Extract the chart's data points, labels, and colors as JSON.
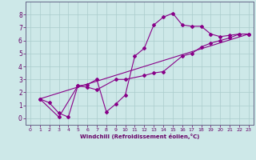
{
  "xlabel": "Windchill (Refroidissement éolien,°C)",
  "bg_color": "#cde8e8",
  "line_color": "#880088",
  "grid_color": "#aacccc",
  "axis_color": "#666688",
  "text_color": "#660066",
  "xlim": [
    -0.5,
    23.5
  ],
  "ylim": [
    -0.5,
    9.0
  ],
  "x_ticks": [
    0,
    1,
    2,
    3,
    4,
    5,
    6,
    7,
    8,
    9,
    10,
    11,
    12,
    13,
    14,
    15,
    16,
    17,
    18,
    19,
    20,
    21,
    22,
    23
  ],
  "y_ticks": [
    0,
    1,
    2,
    3,
    4,
    5,
    6,
    7,
    8
  ],
  "series1_x": [
    1,
    2,
    3,
    4,
    5,
    6,
    7,
    8,
    9,
    10,
    11,
    12,
    13,
    14,
    15,
    16,
    17,
    18,
    19,
    20,
    21,
    22,
    23
  ],
  "series1_y": [
    1.5,
    1.2,
    0.4,
    0.1,
    2.5,
    2.6,
    3.0,
    0.5,
    1.1,
    1.8,
    4.8,
    5.4,
    7.2,
    7.8,
    8.1,
    7.2,
    7.1,
    7.1,
    6.5,
    6.3,
    6.4,
    6.5,
    6.5
  ],
  "series2_x": [
    1,
    3,
    5,
    6,
    7,
    9,
    10,
    12,
    13,
    14,
    16,
    17,
    18,
    19,
    20,
    21,
    22,
    23
  ],
  "series2_y": [
    1.5,
    0.1,
    2.5,
    2.4,
    2.2,
    3.0,
    3.0,
    3.3,
    3.5,
    3.6,
    4.8,
    5.0,
    5.5,
    5.8,
    6.0,
    6.2,
    6.5,
    6.5
  ],
  "series3_x": [
    1,
    23
  ],
  "series3_y": [
    1.5,
    6.5
  ]
}
